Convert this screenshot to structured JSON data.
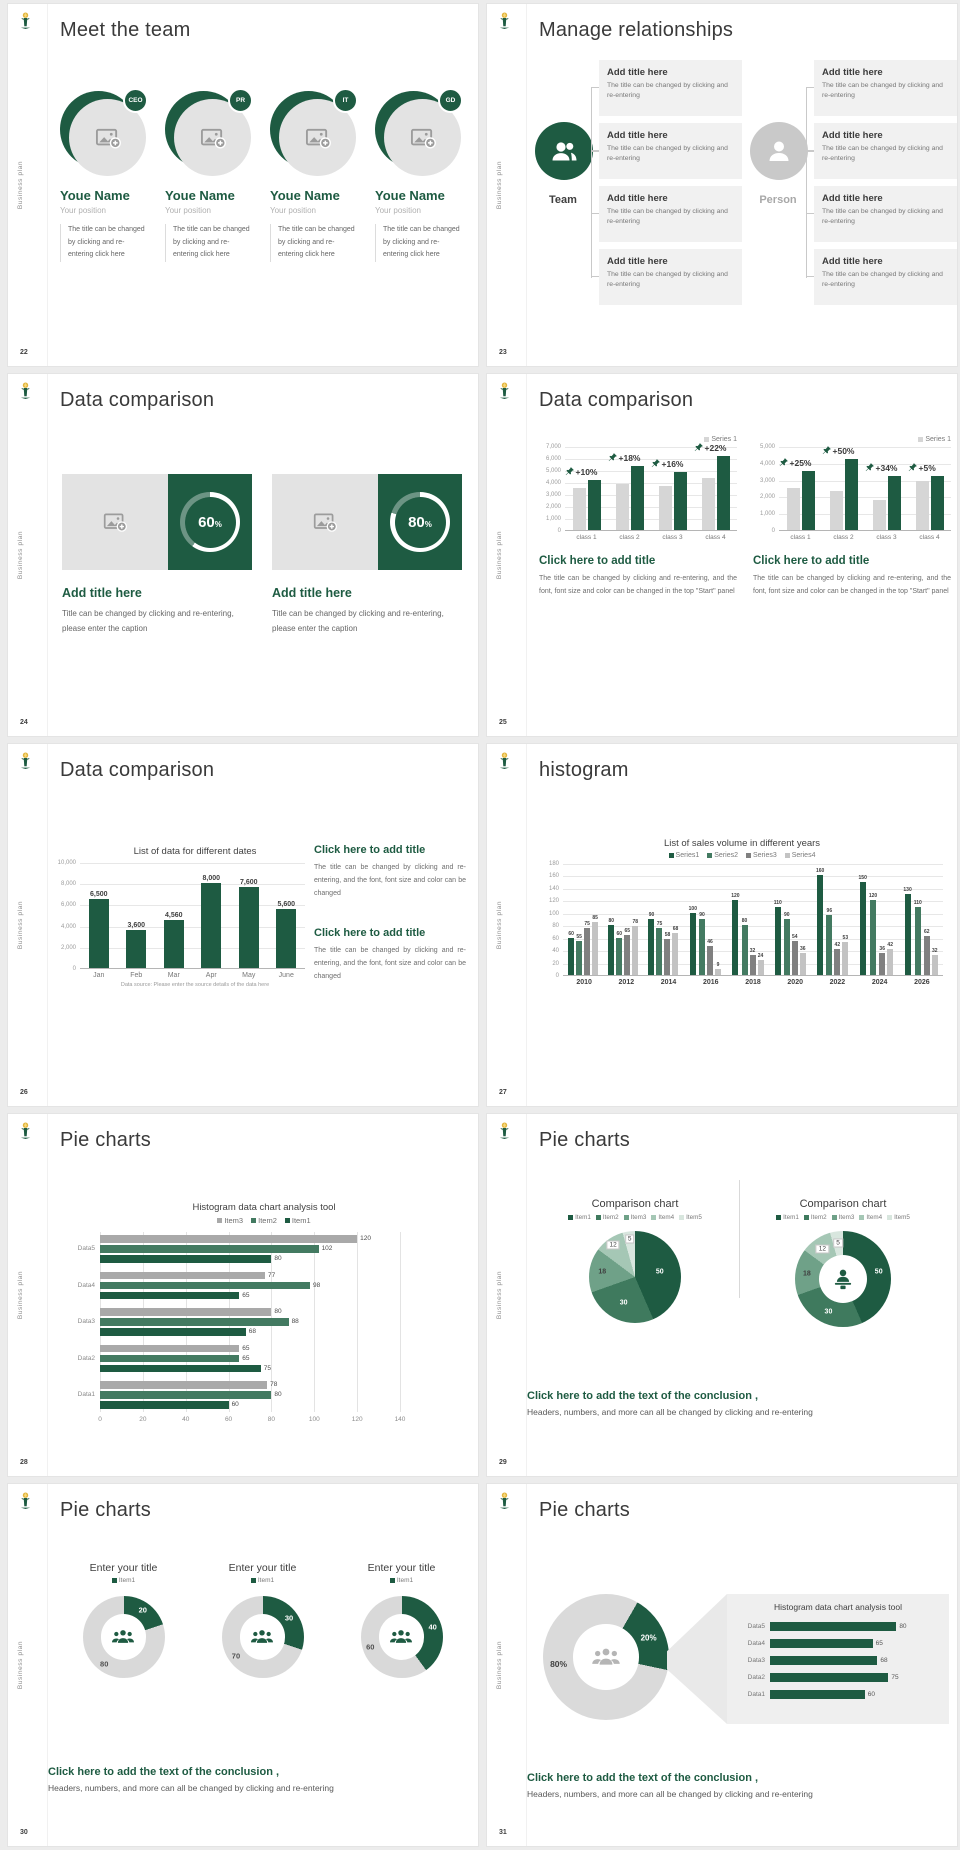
{
  "theme": {
    "accent": "#1e5b42",
    "accent_mid": "#437a61",
    "series_gray_dark": "#808080",
    "series_gray_light": "#c3c3c3",
    "bar_gray": "#d6d6d6",
    "item3_gray": "#a9a9a9",
    "pie_colors": [
      "#1e5b42",
      "#3f7a5e",
      "#6fa188",
      "#a5c7b5",
      "#d8e6de"
    ],
    "sidebar_label": "Business plan"
  },
  "s22": {
    "page": "22",
    "title": "Meet the team",
    "badges": [
      "CEO",
      "PR",
      "IT",
      "GD"
    ],
    "member": {
      "name": "Youe Name",
      "position": "Your position",
      "desc": "The title can be changed by clicking and re-entering click here"
    }
  },
  "s23": {
    "page": "23",
    "title": "Manage relationships",
    "groups": [
      {
        "label": "Team",
        "icon": "team-icon"
      },
      {
        "label": "Person",
        "icon": "person-icon"
      }
    ],
    "boxes_per_group": 4,
    "box": {
      "title": "Add title here",
      "desc": "The title can be changed by clicking and re-entering"
    }
  },
  "s24": {
    "page": "24",
    "title": "Data comparison",
    "cards": [
      {
        "percent": "60"
      },
      {
        "percent": "80"
      }
    ],
    "card_title": "Add title here",
    "card_desc": "Title can be changed by clicking and re-entering, please enter the caption"
  },
  "s25": {
    "page": "25",
    "title": "Data comparison",
    "legend": "Series 1",
    "charts": [
      {
        "type": "bar",
        "yticks": [
          "7,000",
          "6,000",
          "5,000",
          "4,000",
          "3,000",
          "2,000",
          "1,000",
          "0"
        ],
        "ymax": 7000,
        "categories": [
          "class 1",
          "class 2",
          "class 3",
          "class 4"
        ],
        "series1_gray": [
          3500,
          3800,
          3700,
          4300
        ],
        "series2_green": [
          4200,
          5300,
          4800,
          6200
        ],
        "deltas": [
          "+10%",
          "+18%",
          "+16%",
          "+22%"
        ]
      },
      {
        "type": "bar",
        "yticks": [
          "5,000",
          "4,000",
          "3,000",
          "2,000",
          "1,000",
          "0"
        ],
        "ymax": 5000,
        "categories": [
          "class 1",
          "class 2",
          "class 3",
          "class 4"
        ],
        "series1_gray": [
          2500,
          2300,
          1800,
          2900
        ],
        "series2_green": [
          3500,
          4200,
          3200,
          3200
        ],
        "deltas": [
          "+25%",
          "+50%",
          "+34%",
          "+5%"
        ]
      }
    ],
    "block": {
      "title": "Click here to add title",
      "desc": "The title can be changed by clicking and re-entering, and the font, font size and color can be changed in the top \"Start\" panel"
    }
  },
  "s26": {
    "page": "26",
    "title": "Data comparison",
    "chart": {
      "type": "bar",
      "title": "List of data for different dates",
      "yticks": [
        "10,000",
        "8,000",
        "6,000",
        "4,000",
        "2,000",
        "0"
      ],
      "ymax": 10000,
      "categories": [
        "Jan",
        "Feb",
        "Mar",
        "Apr",
        "May",
        "June"
      ],
      "values": [
        6500,
        3600,
        4560,
        8000,
        7600,
        5600
      ],
      "labels": [
        "6,500",
        "3,600",
        "4,560",
        "8,000",
        "7,600",
        "5,600"
      ],
      "footnote": "Data source: Please enter the source details of the data here"
    },
    "block": {
      "title": "Click here to add title",
      "desc": "The title can be changed by clicking and re-entering, and the font, font size and color can be changed"
    }
  },
  "s27": {
    "page": "27",
    "title": "histogram",
    "chart": {
      "type": "bar",
      "title": "List of sales volume in different years",
      "legend": [
        "Series1",
        "Series2",
        "Series3",
        "Series4"
      ],
      "yticks": [
        "180",
        "160",
        "140",
        "120",
        "100",
        "80",
        "60",
        "40",
        "20",
        "0"
      ],
      "ymax": 180,
      "categories": [
        "2010",
        "2012",
        "2014",
        "2016",
        "2018",
        "2020",
        "2022",
        "2024",
        "2026"
      ],
      "series": [
        [
          60,
          80,
          90,
          100,
          120,
          110,
          160,
          150,
          130
        ],
        [
          55,
          60,
          75,
          90,
          80,
          90,
          96,
          120,
          110
        ],
        [
          75,
          65,
          58,
          46,
          32,
          54,
          42,
          36,
          62
        ],
        [
          85,
          78,
          68,
          9,
          24,
          36,
          53,
          42,
          32
        ]
      ]
    }
  },
  "s28": {
    "page": "28",
    "title": "Pie charts",
    "chart": {
      "type": "bar-horizontal",
      "title": "Histogram data chart analysis tool",
      "legend": [
        "Item3",
        "Item2",
        "Item1"
      ],
      "xticks": [
        "0",
        "20",
        "40",
        "60",
        "80",
        "100",
        "120",
        "140"
      ],
      "xmax": 140,
      "categories": [
        "Data5",
        "Data4",
        "Data3",
        "Data2",
        "Data1"
      ],
      "item3": [
        120,
        77,
        80,
        65,
        78
      ],
      "item2": [
        102,
        98,
        88,
        65,
        80
      ],
      "item1": [
        80,
        65,
        68,
        75,
        60
      ]
    }
  },
  "s29": {
    "page": "29",
    "title": "Pie charts",
    "chart_title": "Comparison chart",
    "legend": [
      "Item1",
      "Item2",
      "Item3",
      "Item4",
      "Item5"
    ],
    "values": [
      50,
      30,
      18,
      12,
      5
    ],
    "conclusion": {
      "title": "Click here to add the text of the conclusion ,",
      "desc": "Headers, numbers, and more can all be changed by clicking and re-entering"
    }
  },
  "s30": {
    "page": "30",
    "title": "Pie charts",
    "col_title": "Enter your title",
    "legend": "Item1",
    "donuts": [
      {
        "green": 20,
        "gray": 80
      },
      {
        "green": 30,
        "gray": 70
      },
      {
        "green": 40,
        "gray": 60
      }
    ],
    "conclusion": {
      "title": "Click here to add the text of the conclusion ,",
      "desc": "Headers, numbers, and more can all be changed by clicking and re-entering"
    }
  },
  "s31": {
    "page": "31",
    "title": "Pie charts",
    "donut": {
      "green": 20,
      "green_label": "20%",
      "gray_label": "80%"
    },
    "panel": {
      "title": "Histogram data chart analysis tool",
      "categories": [
        "Data5",
        "Data4",
        "Data3",
        "Data2",
        "Data1"
      ],
      "values": [
        80,
        65,
        68,
        75,
        60
      ]
    },
    "conclusion": {
      "title": "Click here to add the text of the conclusion ,",
      "desc": "Headers, numbers, and more can all be changed by clicking and re-entering"
    }
  }
}
